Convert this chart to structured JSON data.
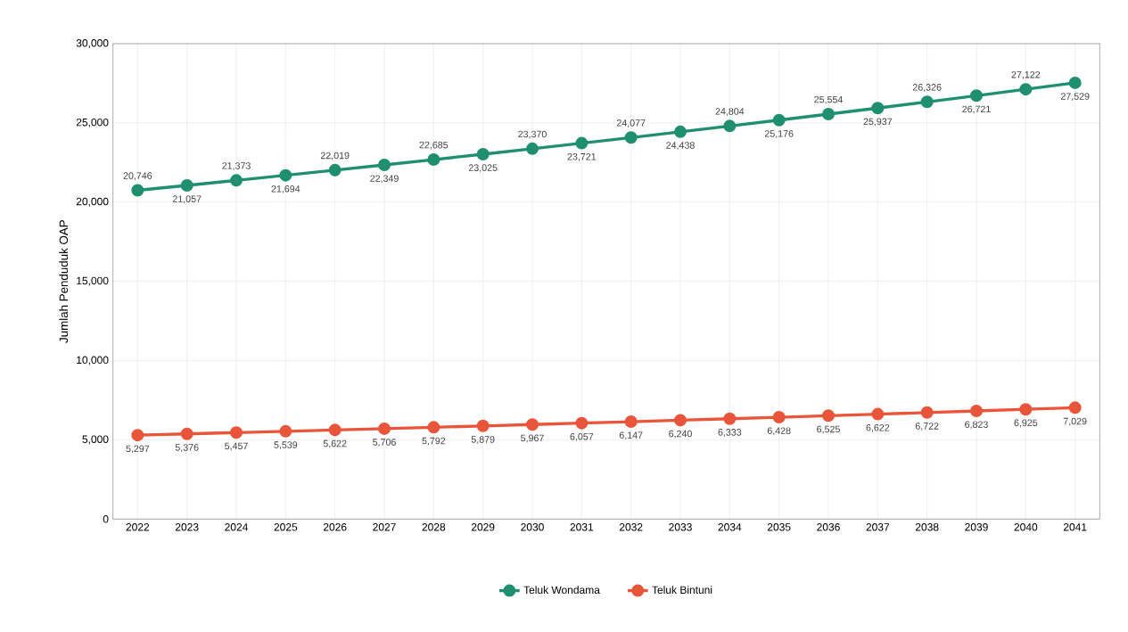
{
  "chart_data": {
    "type": "line",
    "ylabel": "Jumlah Penduduk OAP",
    "categories": [
      "2022",
      "2023",
      "2024",
      "2025",
      "2026",
      "2027",
      "2028",
      "2029",
      "2030",
      "2031",
      "2032",
      "2033",
      "2034",
      "2035",
      "2036",
      "2037",
      "2038",
      "2039",
      "2040",
      "2041"
    ],
    "series": [
      {
        "name": "Teluk Wondama",
        "color": "#1f8f70",
        "values": [
          20746,
          21057,
          21373,
          21694,
          22019,
          22349,
          22685,
          23025,
          23370,
          23721,
          24077,
          24438,
          24804,
          25176,
          25554,
          25937,
          26326,
          26721,
          27122,
          27529
        ],
        "value_labels": [
          "20,746",
          "21,057",
          "21,373",
          "21,694",
          "22,019",
          "22,349",
          "22,685",
          "23,025",
          "23,370",
          "23,721",
          "24,077",
          "24,438",
          "24,804",
          "25,176",
          "25,554",
          "25,937",
          "26,326",
          "26,721",
          "27,122",
          "27,529"
        ]
      },
      {
        "name": "Teluk Bintuni",
        "color": "#e8553a",
        "values": [
          5297,
          5376,
          5457,
          5539,
          5622,
          5706,
          5792,
          5879,
          5967,
          6057,
          6147,
          6240,
          6333,
          6428,
          6525,
          6622,
          6722,
          6823,
          6925,
          7029
        ],
        "value_labels": [
          "5,297",
          "5,376",
          "5,457",
          "5,539",
          "5,622",
          "5,706",
          "5,792",
          "5,879",
          "5,967",
          "6,057",
          "6,147",
          "6,240",
          "6,333",
          "6,428",
          "6,525",
          "6,622",
          "6,722",
          "6,823",
          "6,925",
          "7,029"
        ]
      }
    ],
    "ylim": [
      0,
      30000
    ],
    "yticks": [
      0,
      {
        "value": 5000,
        "label": "5,000"
      },
      {
        "value": 10000,
        "label": "10,000"
      },
      {
        "value": 15000,
        "label": "15,000"
      },
      {
        "value": 20000,
        "label": "20,000"
      },
      {
        "value": 25000,
        "label": "25,000"
      },
      {
        "value": 30000,
        "label": "30,000"
      }
    ],
    "grid": true,
    "legend": "bottom",
    "marker": "circle",
    "line_style": "solid"
  }
}
